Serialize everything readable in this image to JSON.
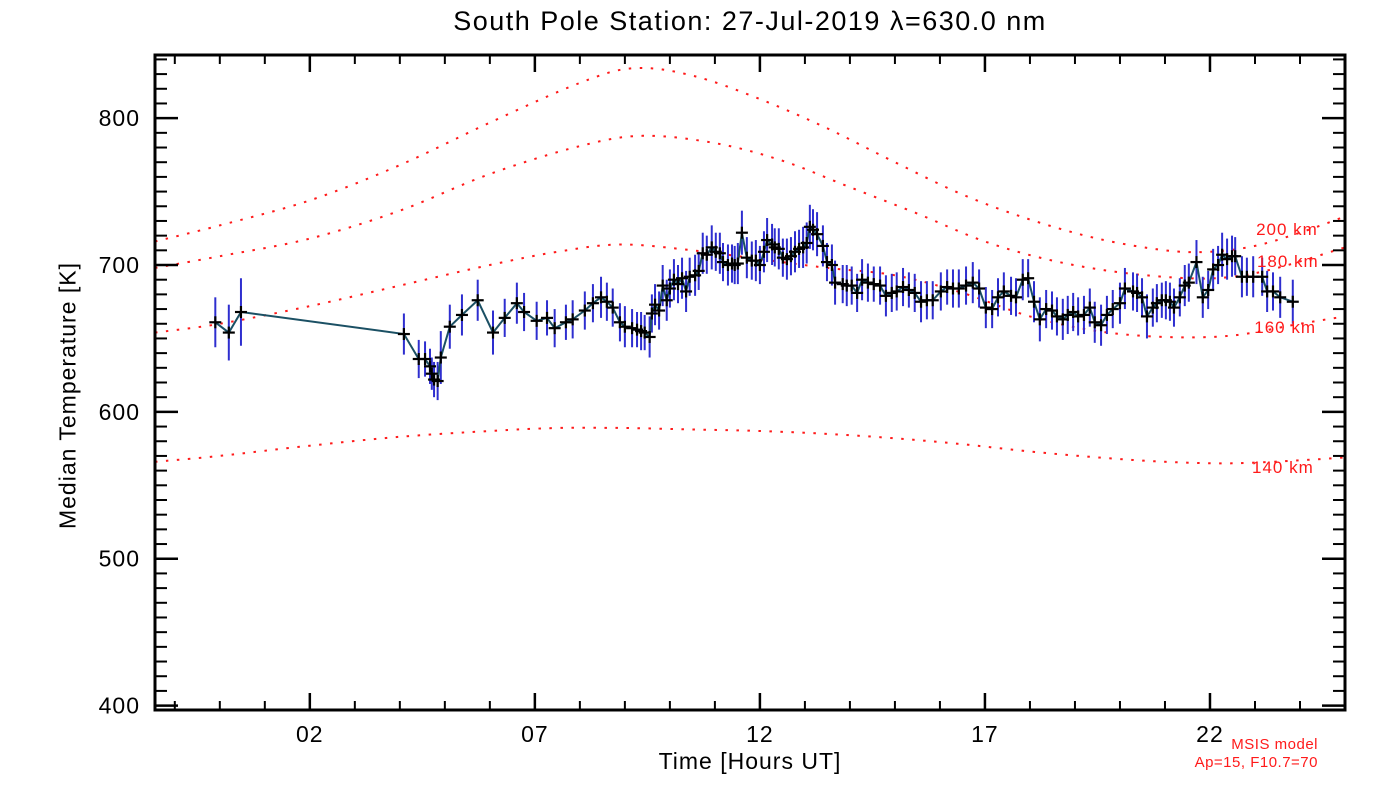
{
  "chart_data": {
    "type": "line",
    "title": "South Pole Station: 27-Jul-2019 λ=630.0 nm",
    "xlabel": "Time [Hours UT]",
    "ylabel": "Median Temperature [K]",
    "grid": false,
    "x_axis": {
      "min": -1.44,
      "max": 25.0,
      "major_ticks": [
        2,
        7,
        12,
        17,
        22
      ],
      "major_labels": [
        "02",
        "07",
        "12",
        "17",
        "22"
      ],
      "minor_step": 1
    },
    "y_axis": {
      "min": 397,
      "max": 843,
      "major_ticks": [
        400,
        500,
        600,
        700,
        800
      ],
      "minor_step": 10
    },
    "series": {
      "name": "median temperature",
      "marker": "plus",
      "points_format": [
        "hour_ut",
        "temperature_K",
        "error_K"
      ],
      "points": [
        [
          -0.1,
          661,
          17
        ],
        [
          0.2,
          654,
          19
        ],
        [
          0.47,
          668,
          23
        ],
        [
          4.09,
          653,
          14
        ],
        [
          4.42,
          636,
          13
        ],
        [
          4.56,
          636,
          12
        ],
        [
          4.67,
          631,
          12
        ],
        [
          4.71,
          626,
          11
        ],
        [
          4.76,
          622,
          12
        ],
        [
          4.84,
          621,
          13
        ],
        [
          4.91,
          637,
          18
        ],
        [
          5.11,
          658,
          15
        ],
        [
          5.38,
          666,
          14
        ],
        [
          5.73,
          676,
          14
        ],
        [
          6.07,
          654,
          15
        ],
        [
          6.33,
          664,
          13
        ],
        [
          6.6,
          674,
          14
        ],
        [
          6.76,
          668,
          13
        ],
        [
          7.04,
          662,
          13
        ],
        [
          7.27,
          664,
          12
        ],
        [
          7.44,
          657,
          13
        ],
        [
          7.69,
          661,
          12
        ],
        [
          7.84,
          663,
          13
        ],
        [
          8.11,
          669,
          13
        ],
        [
          8.29,
          674,
          13
        ],
        [
          8.47,
          678,
          14
        ],
        [
          8.6,
          675,
          13
        ],
        [
          8.73,
          671,
          13
        ],
        [
          8.89,
          661,
          13
        ],
        [
          9.0,
          658,
          14
        ],
        [
          9.16,
          657,
          13
        ],
        [
          9.27,
          656,
          12
        ],
        [
          9.36,
          655,
          13
        ],
        [
          9.44,
          654,
          12
        ],
        [
          9.55,
          651,
          14
        ],
        [
          9.6,
          667,
          13
        ],
        [
          9.67,
          673,
          14
        ],
        [
          9.76,
          669,
          13
        ],
        [
          9.84,
          686,
          14
        ],
        [
          9.93,
          676,
          14
        ],
        [
          10.0,
          684,
          13
        ],
        [
          10.09,
          690,
          14
        ],
        [
          10.18,
          687,
          13
        ],
        [
          10.27,
          691,
          14
        ],
        [
          10.36,
          682,
          14
        ],
        [
          10.44,
          692,
          13
        ],
        [
          10.56,
          693,
          14
        ],
        [
          10.64,
          696,
          13
        ],
        [
          10.73,
          708,
          14
        ],
        [
          10.82,
          707,
          13
        ],
        [
          10.93,
          712,
          15
        ],
        [
          11.02,
          709,
          13
        ],
        [
          11.11,
          708,
          14
        ],
        [
          11.18,
          702,
          13
        ],
        [
          11.29,
          700,
          14
        ],
        [
          11.38,
          701,
          13
        ],
        [
          11.44,
          700,
          13
        ],
        [
          11.51,
          701,
          14
        ],
        [
          11.6,
          722,
          15
        ],
        [
          11.71,
          705,
          14
        ],
        [
          11.82,
          703,
          13
        ],
        [
          11.91,
          703,
          14
        ],
        [
          12.0,
          700,
          13
        ],
        [
          12.09,
          709,
          14
        ],
        [
          12.16,
          717,
          15
        ],
        [
          12.27,
          714,
          14
        ],
        [
          12.33,
          712,
          13
        ],
        [
          12.42,
          711,
          14
        ],
        [
          12.51,
          705,
          13
        ],
        [
          12.6,
          704,
          14
        ],
        [
          12.69,
          706,
          13
        ],
        [
          12.78,
          709,
          14
        ],
        [
          12.87,
          711,
          13
        ],
        [
          12.96,
          712,
          14
        ],
        [
          13.04,
          715,
          14
        ],
        [
          13.11,
          726,
          15
        ],
        [
          13.18,
          724,
          14
        ],
        [
          13.27,
          721,
          15
        ],
        [
          13.4,
          713,
          14
        ],
        [
          13.49,
          702,
          13
        ],
        [
          13.6,
          700,
          14
        ],
        [
          13.67,
          688,
          15
        ],
        [
          13.84,
          687,
          13
        ],
        [
          13.93,
          686,
          14
        ],
        [
          14.04,
          686,
          13
        ],
        [
          14.16,
          681,
          13
        ],
        [
          14.27,
          690,
          14
        ],
        [
          14.4,
          688,
          13
        ],
        [
          14.53,
          687,
          12
        ],
        [
          14.67,
          686,
          13
        ],
        [
          14.8,
          679,
          14
        ],
        [
          14.93,
          681,
          13
        ],
        [
          15.04,
          682,
          13
        ],
        [
          15.18,
          685,
          13
        ],
        [
          15.31,
          683,
          12
        ],
        [
          15.44,
          681,
          13
        ],
        [
          15.58,
          675,
          14
        ],
        [
          15.71,
          676,
          13
        ],
        [
          15.84,
          676,
          13
        ],
        [
          16.02,
          682,
          13
        ],
        [
          16.16,
          685,
          12
        ],
        [
          16.29,
          684,
          13
        ],
        [
          16.42,
          684,
          13
        ],
        [
          16.58,
          686,
          13
        ],
        [
          16.73,
          688,
          14
        ],
        [
          16.87,
          684,
          13
        ],
        [
          17.02,
          671,
          14
        ],
        [
          17.16,
          670,
          13
        ],
        [
          17.29,
          678,
          13
        ],
        [
          17.42,
          682,
          13
        ],
        [
          17.58,
          679,
          13
        ],
        [
          17.69,
          678,
          13
        ],
        [
          17.84,
          690,
          14
        ],
        [
          17.96,
          691,
          13
        ],
        [
          18.09,
          675,
          14
        ],
        [
          18.22,
          663,
          15
        ],
        [
          18.36,
          670,
          13
        ],
        [
          18.49,
          669,
          13
        ],
        [
          18.6,
          665,
          13
        ],
        [
          18.73,
          663,
          14
        ],
        [
          18.84,
          666,
          13
        ],
        [
          18.96,
          668,
          13
        ],
        [
          19.07,
          665,
          13
        ],
        [
          19.2,
          666,
          13
        ],
        [
          19.33,
          671,
          13
        ],
        [
          19.44,
          661,
          14
        ],
        [
          19.58,
          659,
          14
        ],
        [
          19.71,
          666,
          13
        ],
        [
          19.84,
          670,
          13
        ],
        [
          20.0,
          674,
          14
        ],
        [
          20.11,
          684,
          14
        ],
        [
          20.29,
          682,
          13
        ],
        [
          20.38,
          681,
          13
        ],
        [
          20.49,
          678,
          13
        ],
        [
          20.6,
          665,
          15
        ],
        [
          20.73,
          671,
          13
        ],
        [
          20.82,
          674,
          13
        ],
        [
          20.93,
          676,
          12
        ],
        [
          21.02,
          676,
          13
        ],
        [
          21.11,
          675,
          13
        ],
        [
          21.2,
          671,
          13
        ],
        [
          21.33,
          678,
          13
        ],
        [
          21.44,
          686,
          14
        ],
        [
          21.53,
          688,
          13
        ],
        [
          21.7,
          702,
          15
        ],
        [
          21.84,
          678,
          14
        ],
        [
          21.96,
          683,
          13
        ],
        [
          22.07,
          697,
          14
        ],
        [
          22.18,
          700,
          13
        ],
        [
          22.27,
          707,
          15
        ],
        [
          22.38,
          704,
          14
        ],
        [
          22.49,
          706,
          14
        ],
        [
          22.56,
          706,
          13
        ],
        [
          22.71,
          692,
          14
        ],
        [
          22.82,
          692,
          13
        ],
        [
          22.96,
          692,
          14
        ],
        [
          23.16,
          692,
          13
        ],
        [
          23.27,
          682,
          14
        ],
        [
          23.4,
          682,
          13
        ],
        [
          23.56,
          678,
          14
        ],
        [
          23.84,
          675,
          15
        ]
      ]
    },
    "model_curves": [
      {
        "label": "200 km",
        "label_at": [
          23.71,
          724
        ],
        "points": [
          [
            -1.44,
            716
          ],
          [
            0,
            727
          ],
          [
            2,
            744
          ],
          [
            4,
            768
          ],
          [
            6,
            797
          ],
          [
            8,
            824
          ],
          [
            9.2,
            834
          ],
          [
            10.5,
            829
          ],
          [
            12,
            813
          ],
          [
            13.5,
            793
          ],
          [
            15,
            770
          ],
          [
            16.5,
            748
          ],
          [
            18,
            731
          ],
          [
            19.5,
            718
          ],
          [
            21,
            710
          ],
          [
            22,
            709
          ],
          [
            23,
            713
          ],
          [
            24,
            722
          ],
          [
            25,
            733
          ]
        ]
      },
      {
        "label": "180 km",
        "label_at": [
          23.73,
          702
        ],
        "points": [
          [
            -1.44,
            698
          ],
          [
            0,
            706
          ],
          [
            2,
            718
          ],
          [
            4,
            737
          ],
          [
            6,
            762
          ],
          [
            8,
            781
          ],
          [
            9.4,
            788
          ],
          [
            11,
            783
          ],
          [
            12.5,
            771
          ],
          [
            14,
            753
          ],
          [
            15.5,
            735
          ],
          [
            17,
            716
          ],
          [
            18.5,
            703
          ],
          [
            20,
            695
          ],
          [
            21.5,
            691
          ],
          [
            22.5,
            692
          ],
          [
            23.5,
            698
          ],
          [
            25,
            712
          ]
        ]
      },
      {
        "label": "160 km",
        "label_at": [
          23.67,
          657
        ],
        "points": [
          [
            -1.44,
            654
          ],
          [
            0,
            660
          ],
          [
            2,
            672
          ],
          [
            4,
            686
          ],
          [
            6,
            700
          ],
          [
            7.5,
            709
          ],
          [
            8.9,
            714
          ],
          [
            10.5,
            710
          ],
          [
            12,
            704
          ],
          [
            13.5,
            698
          ],
          [
            15,
            693
          ],
          [
            16.5,
            681
          ],
          [
            18,
            665
          ],
          [
            19.5,
            655
          ],
          [
            21,
            651
          ],
          [
            22.5,
            652
          ],
          [
            24,
            660
          ],
          [
            25,
            665
          ]
        ]
      },
      {
        "label": "140 km",
        "label_at": [
          23.62,
          562
        ],
        "points": [
          [
            -1.44,
            566
          ],
          [
            0,
            570
          ],
          [
            2,
            577
          ],
          [
            4,
            583
          ],
          [
            6,
            587
          ],
          [
            7.5,
            589
          ],
          [
            9,
            589
          ],
          [
            10.5,
            588
          ],
          [
            12,
            587
          ],
          [
            13.5,
            585
          ],
          [
            15,
            582
          ],
          [
            16.5,
            578
          ],
          [
            18,
            573
          ],
          [
            19.5,
            569
          ],
          [
            21,
            566
          ],
          [
            22.5,
            565
          ],
          [
            24,
            567
          ],
          [
            25,
            569
          ]
        ]
      }
    ],
    "annotations": {
      "model_name": "MSIS model",
      "model_params": "Ap=15, F10.7=70"
    },
    "legend_position": "none",
    "colors": {
      "data_line": "#1b5064",
      "error_bar": "#2e2ecf",
      "marker": "#000000",
      "model": "#ff1a1a",
      "axis": "#000000",
      "background": "#ffffff"
    }
  }
}
